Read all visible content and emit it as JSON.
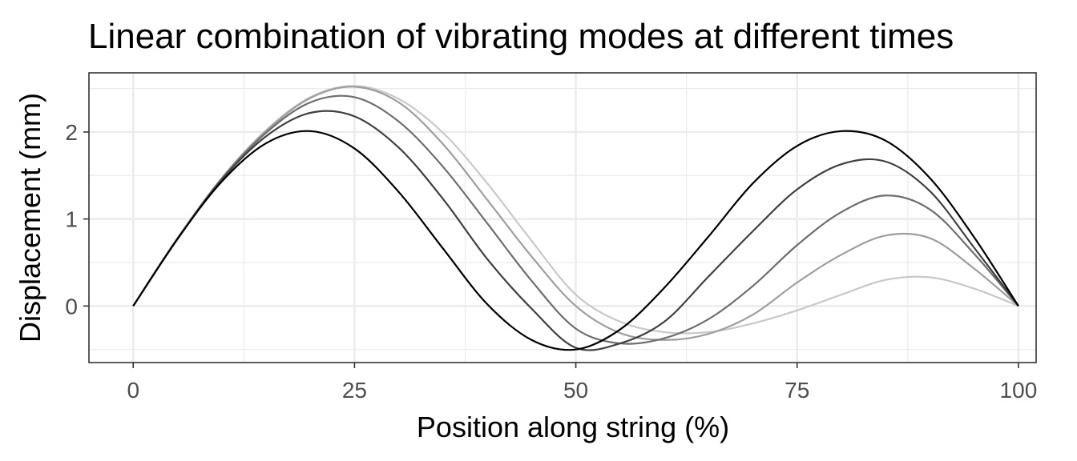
{
  "chart_data": {
    "type": "line",
    "title": "Linear combination of vibrating modes at different times",
    "xlabel": "Position along string (%)",
    "ylabel": "Displacement (mm)",
    "xlim": [
      -5,
      102
    ],
    "ylim": [
      -0.65,
      2.68
    ],
    "xticks": [
      0,
      25,
      50,
      75,
      100
    ],
    "xtick_labels": [
      "0",
      "25",
      "50",
      "75",
      "100"
    ],
    "yticks": [
      0,
      1,
      2
    ],
    "ytick_labels": [
      "0",
      "1",
      "2"
    ],
    "grid": true,
    "legend": "none",
    "background": "#ffffff",
    "panel_border_color": "#333333",
    "grid_color": "#ebebeb",
    "x": [
      0,
      5,
      10,
      15,
      20,
      25,
      30,
      35,
      40,
      45,
      50,
      55,
      60,
      65,
      70,
      75,
      80,
      85,
      90,
      95,
      100
    ],
    "series": [
      {
        "color": "#000000",
        "values": [
          0,
          0.77,
          1.43,
          1.87,
          2.01,
          1.81,
          1.31,
          0.66,
          0.02,
          -0.39,
          -0.5,
          -0.27,
          0.21,
          0.8,
          1.41,
          1.84,
          2.01,
          1.9,
          1.47,
          0.79,
          0
        ]
      },
      {
        "color": "#404040",
        "values": [
          0,
          0.77,
          1.45,
          1.95,
          2.22,
          2.18,
          1.82,
          1.23,
          0.54,
          -0.03,
          -0.48,
          -0.43,
          -0.18,
          0.34,
          0.86,
          1.34,
          1.63,
          1.66,
          1.32,
          0.67,
          0
        ]
      },
      {
        "color": "#6e6e6e",
        "values": [
          0,
          0.77,
          1.46,
          1.99,
          2.34,
          2.4,
          2.12,
          1.6,
          0.95,
          0.29,
          -0.26,
          -0.43,
          -0.37,
          -0.15,
          0.23,
          0.7,
          1.08,
          1.27,
          1.11,
          0.6,
          0
        ]
      },
      {
        "color": "#9e9e9e",
        "values": [
          0,
          0.78,
          1.47,
          2.01,
          2.39,
          2.52,
          2.34,
          1.86,
          1.22,
          0.57,
          0.0,
          -0.31,
          -0.39,
          -0.32,
          -0.1,
          0.27,
          0.59,
          0.81,
          0.78,
          0.43,
          0
        ]
      },
      {
        "color": "#c8c8c8",
        "values": [
          0,
          0.78,
          1.47,
          2.02,
          2.4,
          2.53,
          2.38,
          1.99,
          1.41,
          0.75,
          0.13,
          -0.18,
          -0.3,
          -0.3,
          -0.2,
          -0.05,
          0.13,
          0.3,
          0.33,
          0.2,
          0
        ]
      }
    ]
  }
}
